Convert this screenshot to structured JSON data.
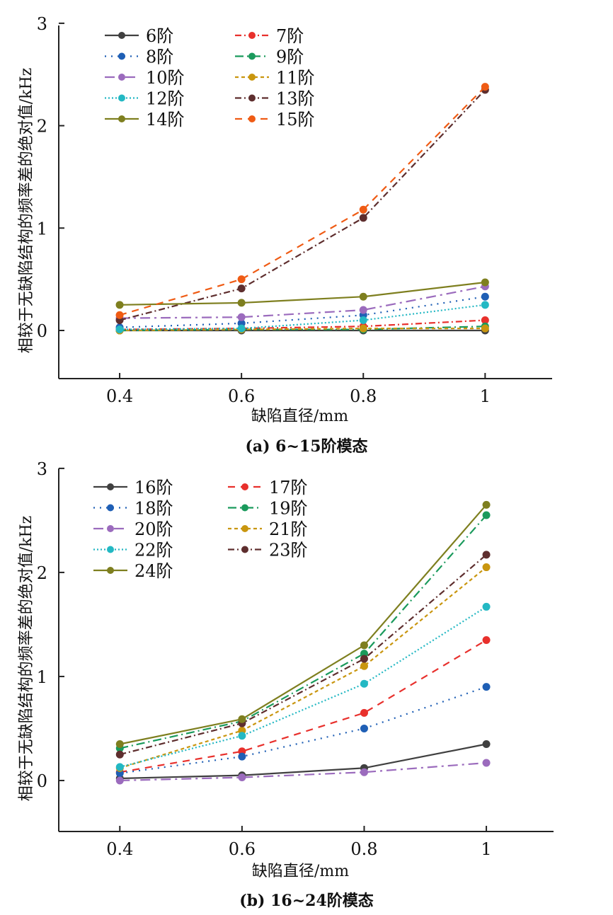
{
  "chart_data": [
    {
      "type": "line",
      "caption": "(a) 6~15阶模态",
      "xlabel": "缺陷直径/mm",
      "ylabel": "相较于无缺陷结构的频率差的绝对值/kHz",
      "x": [
        0.4,
        0.6,
        0.8,
        1.0
      ],
      "x_tick_labels": [
        "0.4",
        "0.6",
        "0.8",
        "1"
      ],
      "y_ticks": [
        0,
        1,
        2,
        3
      ],
      "y_tick_labels": [
        "0",
        "1",
        "2",
        "3"
      ],
      "xlim": [
        0.3,
        1.11
      ],
      "ylim": [
        -0.47,
        3.02
      ],
      "grid": false,
      "legend_position": "top-left",
      "legend_columns": 2,
      "series": [
        {
          "name": "6阶",
          "color": "#404040",
          "dash": "solid",
          "values": [
            0.0,
            0.0,
            0.0,
            0.0
          ]
        },
        {
          "name": "7阶",
          "color": "#e8302c",
          "dash": "dashdot",
          "values": [
            0.01,
            0.02,
            0.04,
            0.1
          ]
        },
        {
          "name": "8阶",
          "color": "#1f5fb5",
          "dash": "dotted",
          "values": [
            0.03,
            0.07,
            0.15,
            0.33
          ]
        },
        {
          "name": "9阶",
          "color": "#1a9a5c",
          "dash": "dashdot2",
          "values": [
            0.0,
            0.01,
            0.01,
            0.04
          ]
        },
        {
          "name": "10阶",
          "color": "#9b6bbd",
          "dash": "dashdot3",
          "values": [
            0.12,
            0.13,
            0.2,
            0.43
          ]
        },
        {
          "name": "11阶",
          "color": "#c9960f",
          "dash": "dashed",
          "values": [
            0.0,
            0.01,
            0.02,
            0.02
          ]
        },
        {
          "name": "12阶",
          "color": "#23b8c3",
          "dash": "dotted2",
          "values": [
            0.01,
            0.02,
            0.1,
            0.25
          ]
        },
        {
          "name": "13阶",
          "color": "#5e2e2e",
          "dash": "dashdot",
          "values": [
            0.1,
            0.41,
            1.1,
            2.35
          ]
        },
        {
          "name": "14阶",
          "color": "#7e7f1f",
          "dash": "solid",
          "values": [
            0.25,
            0.27,
            0.33,
            0.47
          ]
        },
        {
          "name": "15阶",
          "color": "#ef5b14",
          "dash": "longdash",
          "values": [
            0.15,
            0.5,
            1.18,
            2.38
          ]
        }
      ]
    },
    {
      "type": "line",
      "caption": "(b) 16~24阶模态",
      "xlabel": "缺陷直径/mm",
      "ylabel": "相较于无缺陷结构的频率差的绝对值/kHz",
      "x": [
        0.4,
        0.6,
        0.8,
        1.0
      ],
      "x_tick_labels": [
        "0.4",
        "0.6",
        "0.8",
        "1"
      ],
      "y_ticks": [
        0,
        1,
        2,
        3
      ],
      "y_tick_labels": [
        "0",
        "1",
        "2",
        "3"
      ],
      "xlim": [
        0.3,
        1.11
      ],
      "ylim": [
        -0.49,
        3.04
      ],
      "grid": false,
      "legend_position": "top-left",
      "legend_columns": 2,
      "series": [
        {
          "name": "16阶",
          "color": "#404040",
          "dash": "solid",
          "values": [
            0.02,
            0.05,
            0.12,
            0.35
          ]
        },
        {
          "name": "17阶",
          "color": "#e8302c",
          "dash": "longdash",
          "values": [
            0.08,
            0.28,
            0.65,
            1.35
          ]
        },
        {
          "name": "18阶",
          "color": "#1f5fb5",
          "dash": "dotted",
          "values": [
            0.07,
            0.23,
            0.5,
            0.9
          ]
        },
        {
          "name": "19阶",
          "color": "#1a9a5c",
          "dash": "dashdot2",
          "values": [
            0.31,
            0.57,
            1.22,
            2.55
          ]
        },
        {
          "name": "20阶",
          "color": "#9b6bbd",
          "dash": "dashdot3",
          "values": [
            0.0,
            0.03,
            0.08,
            0.17
          ]
        },
        {
          "name": "21阶",
          "color": "#c9960f",
          "dash": "dashed",
          "values": [
            0.12,
            0.48,
            1.1,
            2.05
          ]
        },
        {
          "name": "22阶",
          "color": "#23b8c3",
          "dash": "dotted2",
          "values": [
            0.13,
            0.43,
            0.93,
            1.67
          ]
        },
        {
          "name": "23阶",
          "color": "#5e2e2e",
          "dash": "dashdot",
          "values": [
            0.25,
            0.55,
            1.17,
            2.17
          ]
        },
        {
          "name": "24阶",
          "color": "#7e7f1f",
          "dash": "solid",
          "values": [
            0.35,
            0.59,
            1.3,
            2.65
          ]
        }
      ]
    }
  ]
}
